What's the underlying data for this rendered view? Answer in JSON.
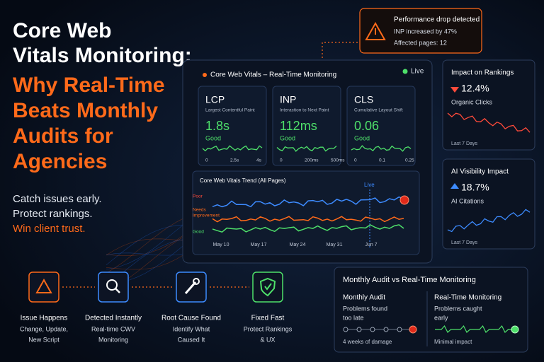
{
  "headline": {
    "lines_white": [
      "Core Web",
      "Vitals Monitoring:"
    ],
    "lines_orange": [
      "Why Real-Time",
      "Beats Monthly",
      "Audits for",
      "Agencies"
    ]
  },
  "taglines": [
    "Catch issues early.",
    "Protect rankings.",
    "Win client trust."
  ],
  "alert": {
    "title": "Performance drop detected",
    "lines": [
      "INP increased by 47%",
      "Affected pages: 12"
    ]
  },
  "dashboard": {
    "title": "Core Web Vitals – Real-Time Monitoring",
    "status": "Live",
    "metrics": [
      {
        "name": "LCP",
        "description": "Largest Contentful Paint",
        "value": "1.8s",
        "rating": "Good",
        "ticks": [
          "0",
          "2.5s",
          "4s"
        ]
      },
      {
        "name": "INP",
        "description": "Interaction to Next Paint",
        "value": "112ms",
        "rating": "Good",
        "ticks": [
          "0",
          "200ms",
          "500ms"
        ]
      },
      {
        "name": "CLS",
        "description": "Cumulative Layout Shift",
        "value": "0.06",
        "rating": "Good",
        "ticks": [
          "0",
          "0.1",
          "0.25"
        ]
      }
    ],
    "trend": {
      "title": "Core Web Vitals Trend (All Pages)",
      "live": "Live",
      "bands": [
        [
          "Poor"
        ],
        [
          "Needs",
          "Improvement"
        ],
        [
          "Good"
        ]
      ],
      "dates": [
        "May 10",
        "May 17",
        "May 24",
        "May 31",
        "Jun 7"
      ]
    }
  },
  "impact_cards": [
    {
      "title": "Impact on Rankings",
      "value": "12.4%",
      "metric": "Organic Clicks",
      "period": "Last 7 Days"
    },
    {
      "title": "AI Visibility Impact",
      "value": "18.7%",
      "metric": "AI Citations",
      "period": "Last 7 Days"
    }
  ],
  "steps": [
    {
      "title": "Issue Happens",
      "detail": [
        "Change, Update,",
        "New Script"
      ]
    },
    {
      "title": "Detected Instantly",
      "detail": [
        "Real-time CWV",
        "Monitoring"
      ]
    },
    {
      "title": "Root Cause Found",
      "detail": [
        "Identify What",
        "Caused It"
      ]
    },
    {
      "title": "Fixed Fast",
      "detail": [
        "Protect Rankings",
        "& UX"
      ]
    }
  ],
  "comparison": {
    "title": "Monthly Audit vs Real-Time Monitoring",
    "columns": [
      {
        "heading": "Monthly Audit",
        "text": [
          "Problems found",
          "too late"
        ],
        "footer": "4 weeks of damage"
      },
      {
        "heading": "Real-Time Monitoring",
        "text": [
          "Problems caught",
          "early"
        ],
        "footer": "Minimal impact"
      }
    ]
  }
}
